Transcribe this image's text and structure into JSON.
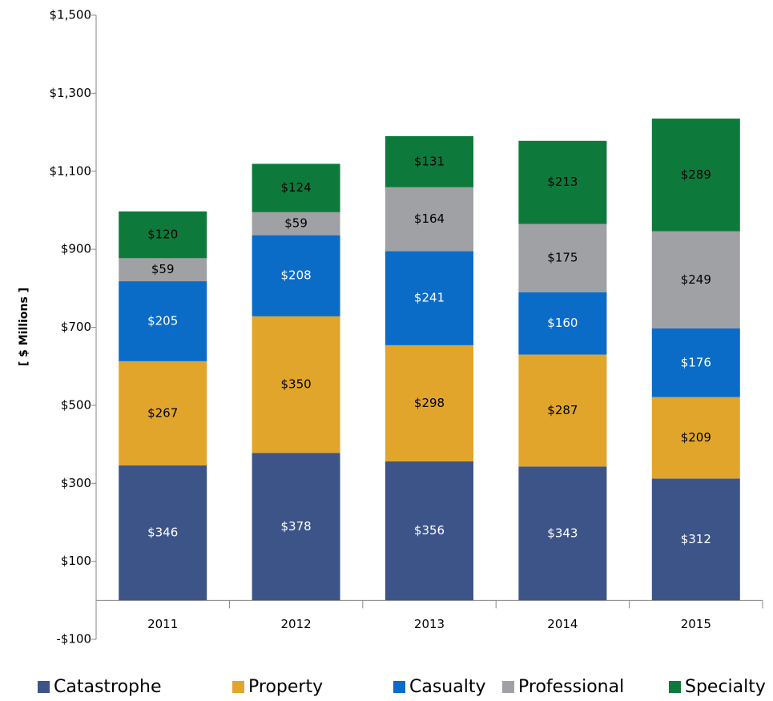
{
  "chart_data": {
    "type": "stacked_bar",
    "ylabel": "[ $ Millions ]",
    "categories": [
      "2011",
      "2012",
      "2013",
      "2014",
      "2015"
    ],
    "series": [
      {
        "name": "Catastrophe",
        "color": "#3d5488",
        "label_color": "#ffffff",
        "values": [
          346,
          378,
          356,
          343,
          312
        ],
        "value_labels": [
          "$346",
          "$378",
          "$356",
          "$343",
          "$312"
        ]
      },
      {
        "name": "Property",
        "color": "#e0a52a",
        "label_color": "#000000",
        "values": [
          267,
          350,
          298,
          287,
          209
        ],
        "value_labels": [
          "$267",
          "$350",
          "$298",
          "$287",
          "$209"
        ]
      },
      {
        "name": "Casualty",
        "color": "#0b6cc7",
        "label_color": "#ffffff",
        "values": [
          205,
          208,
          241,
          160,
          176
        ],
        "value_labels": [
          "$205",
          "$208",
          "$241",
          "$160",
          "$176"
        ]
      },
      {
        "name": "Professional",
        "color": "#a0a1a5",
        "label_color": "#000000",
        "values": [
          59,
          59,
          164,
          175,
          249
        ],
        "value_labels": [
          "$59",
          "$59",
          "$164",
          "$175",
          "$249"
        ]
      },
      {
        "name": "Specialty",
        "color": "#0d7a3c",
        "label_color": "#000000",
        "values": [
          120,
          124,
          131,
          213,
          289
        ],
        "value_labels": [
          "$120",
          "$124",
          "$131",
          "$213",
          "$289"
        ]
      }
    ],
    "ylim": [
      -100,
      1500
    ],
    "yticks": [
      {
        "value": -100,
        "label": "-$100"
      },
      {
        "value": 100,
        "label": "$100"
      },
      {
        "value": 300,
        "label": "$300"
      },
      {
        "value": 500,
        "label": "$500"
      },
      {
        "value": 700,
        "label": "$700"
      },
      {
        "value": 900,
        "label": "$900"
      },
      {
        "value": 1100,
        "label": "$1,100"
      },
      {
        "value": 1300,
        "label": "$1,300"
      },
      {
        "value": 1500,
        "label": "$1,500"
      }
    ],
    "legend": "bottom"
  }
}
